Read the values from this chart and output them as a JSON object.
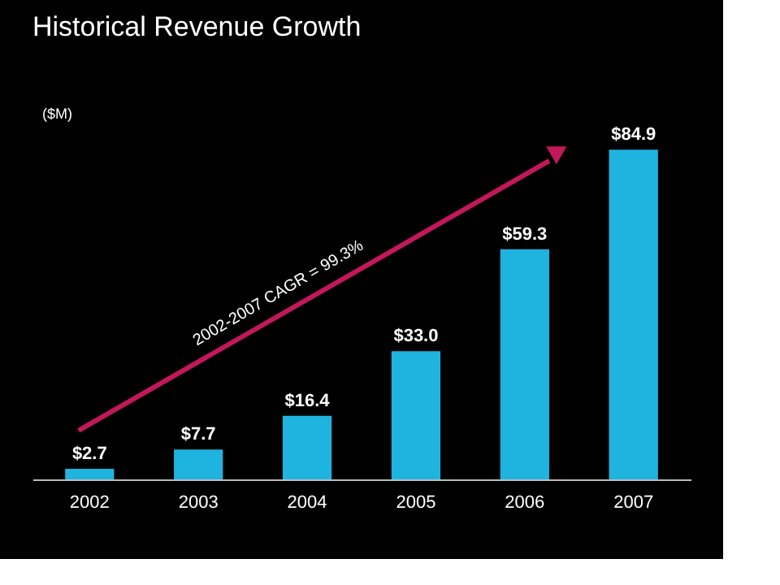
{
  "chart_data": {
    "type": "bar",
    "title": "Historical Revenue Growth",
    "ylabel": "($M)",
    "categories": [
      "2002",
      "2003",
      "2004",
      "2005",
      "2006",
      "2007"
    ],
    "values": [
      2.7,
      7.7,
      16.4,
      33.0,
      59.3,
      84.9
    ],
    "value_labels": [
      "$2.7",
      "$7.7",
      "$16.4",
      "$33.0",
      "$59.3",
      "$84.9"
    ],
    "color": "#1fb4df",
    "annotations": [
      "2002-2007 CAGR = 99.3%"
    ],
    "grid": false
  }
}
